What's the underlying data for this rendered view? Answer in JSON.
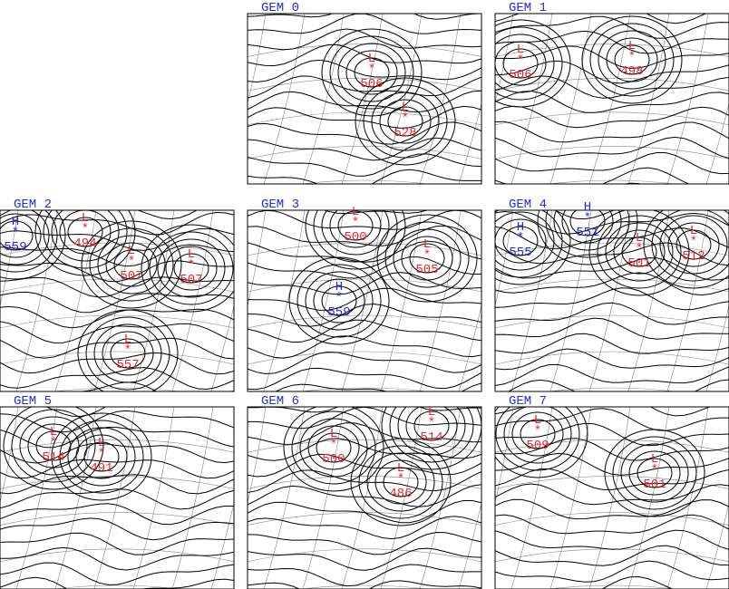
{
  "center_marker": "*",
  "panels": [
    {
      "title": "GEM 0",
      "centers": [
        {
          "symbol": "L",
          "value": 506
        },
        {
          "symbol": "L",
          "value": 528
        }
      ]
    },
    {
      "title": "GEM 1",
      "centers": [
        {
          "symbol": "L",
          "value": 506
        },
        {
          "symbol": "L",
          "value": 498
        }
      ]
    },
    {
      "title": "GEM 2",
      "centers": [
        {
          "symbol": "H",
          "value": 559
        },
        {
          "symbol": "L",
          "value": 494
        },
        {
          "symbol": "L",
          "value": 507
        },
        {
          "symbol": "L",
          "value": 507
        },
        {
          "symbol": "L",
          "value": 557
        }
      ]
    },
    {
      "title": "GEM 3",
      "centers": [
        {
          "symbol": "L",
          "value": 500
        },
        {
          "symbol": "L",
          "value": 505
        },
        {
          "symbol": "H",
          "value": 559
        }
      ]
    },
    {
      "title": "GEM 4",
      "centers": [
        {
          "symbol": "H",
          "value": 555
        },
        {
          "symbol": "H",
          "value": 551
        },
        {
          "symbol": "L",
          "value": 501
        },
        {
          "symbol": "L",
          "value": 512
        }
      ]
    },
    {
      "title": "GEM 5",
      "centers": [
        {
          "symbol": "L",
          "value": 514
        },
        {
          "symbol": "L",
          "value": 491
        }
      ]
    },
    {
      "title": "GEM 6",
      "centers": [
        {
          "symbol": "L",
          "value": 500
        },
        {
          "symbol": "L",
          "value": 514
        },
        {
          "symbol": "L",
          "value": 486
        }
      ]
    },
    {
      "title": "GEM 7",
      "centers": [
        {
          "symbol": "L",
          "value": 509
        },
        {
          "symbol": "L",
          "value": 501
        }
      ]
    }
  ]
}
